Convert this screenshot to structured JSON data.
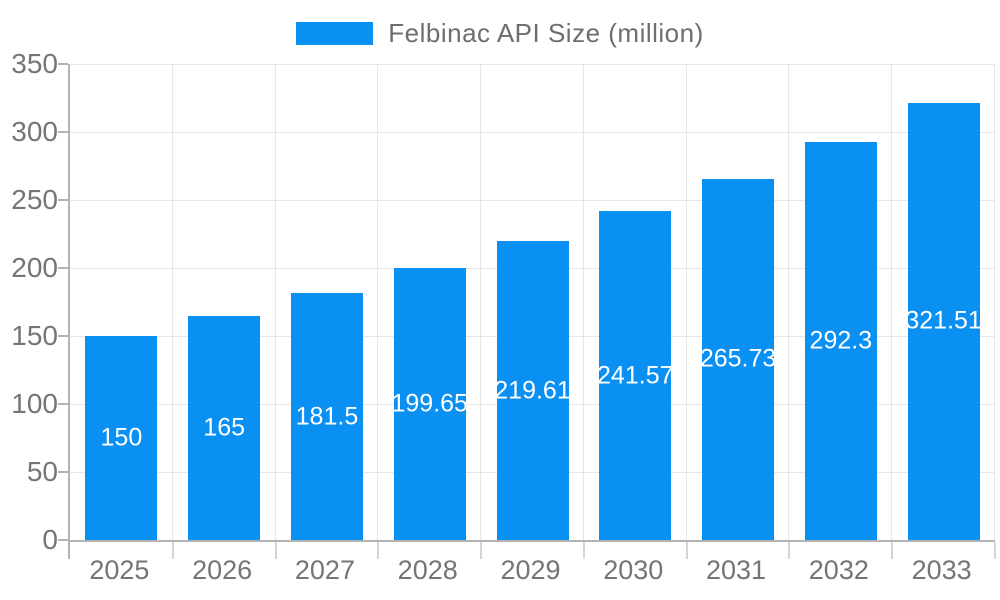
{
  "chart_data": {
    "type": "bar",
    "title": "Felbinac API Size (million)",
    "legend": {
      "position": "top-center",
      "label": "Felbinac API Size (million)"
    },
    "categories": [
      "2025",
      "2026",
      "2027",
      "2028",
      "2029",
      "2030",
      "2031",
      "2032",
      "2033"
    ],
    "series": [
      {
        "name": "Felbinac API Size (million)",
        "values": [
          150,
          165,
          181.5,
          199.65,
          219.61,
          241.57,
          265.73,
          292.3,
          321.51
        ]
      }
    ],
    "value_labels": [
      "150",
      "165",
      "181.5",
      "199.65",
      "219.61",
      "241.57",
      "265.73",
      "292.3",
      "321.51"
    ],
    "xlabel": "",
    "ylabel": "",
    "ylim": [
      0,
      350
    ],
    "yticks": [
      0,
      50,
      100,
      150,
      200,
      250,
      300,
      350
    ],
    "grid": true,
    "colors": {
      "bar": "#0a8ff2",
      "axis_line": "#b3b3b3",
      "grid_line": "#e6e6e6",
      "tick_mark": "#d5d5d5",
      "tick_label": "#757575",
      "legend_label": "#6e6e6e",
      "value_label": "#ffffff",
      "background": "#ffffff"
    }
  }
}
